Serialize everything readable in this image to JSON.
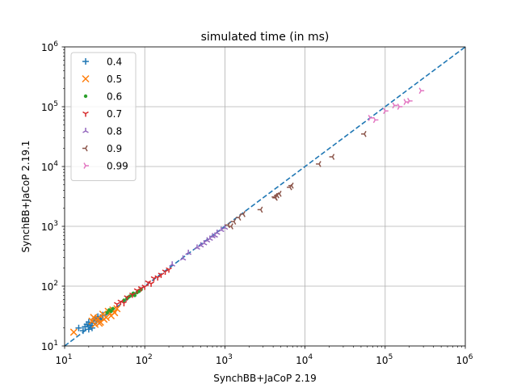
{
  "chart_data": {
    "type": "scatter",
    "title": "simulated time (in ms)",
    "xlabel": "SynchBB+JaCoP 2.19",
    "ylabel": "SynchBB+JaCoP 2.19.1",
    "xscale": "log",
    "yscale": "log",
    "xlim": [
      10,
      1000000
    ],
    "ylim": [
      10,
      1000000
    ],
    "grid": true,
    "legend": "top-left",
    "ticks": [
      {
        "base": "10",
        "exp": "1",
        "value": 10
      },
      {
        "base": "10",
        "exp": "2",
        "value": 100
      },
      {
        "base": "10",
        "exp": "3",
        "value": 1000
      },
      {
        "base": "10",
        "exp": "4",
        "value": 10000
      },
      {
        "base": "10",
        "exp": "5",
        "value": 100000
      },
      {
        "base": "10",
        "exp": "6",
        "value": 1000000
      }
    ],
    "reference_line": {
      "style": "dashed",
      "color": "#1f77b4",
      "from": [
        10,
        10
      ],
      "to": [
        1000000,
        1000000
      ]
    },
    "series": [
      {
        "name": "0.4",
        "marker": "plus",
        "color": "#1f77b4",
        "points": [
          [
            15,
            20
          ],
          [
            17,
            18
          ],
          [
            18,
            21
          ],
          [
            19,
            23
          ],
          [
            20,
            25
          ],
          [
            21,
            22
          ],
          [
            22,
            24
          ],
          [
            23,
            27
          ],
          [
            25,
            26
          ],
          [
            27,
            28
          ],
          [
            24,
            29
          ],
          [
            26,
            31
          ],
          [
            28,
            27
          ],
          [
            30,
            33
          ],
          [
            22,
            20
          ],
          [
            20,
            19
          ]
        ]
      },
      {
        "name": "0.5",
        "marker": "x",
        "color": "#ff7f0e",
        "points": [
          [
            13,
            17
          ],
          [
            22,
            26
          ],
          [
            24,
            23
          ],
          [
            26,
            29
          ],
          [
            28,
            25
          ],
          [
            30,
            34
          ],
          [
            33,
            30
          ],
          [
            35,
            38
          ],
          [
            38,
            32
          ],
          [
            40,
            40
          ],
          [
            42,
            36
          ],
          [
            45,
            42
          ],
          [
            23,
            30
          ],
          [
            27,
            24
          ],
          [
            31,
            28
          ]
        ]
      },
      {
        "name": "0.6",
        "marker": "dot",
        "color": "#2ca02c",
        "points": [
          [
            34,
            36
          ],
          [
            36,
            40
          ],
          [
            38,
            38
          ],
          [
            40,
            42
          ],
          [
            55,
            58
          ],
          [
            60,
            62
          ],
          [
            65,
            68
          ],
          [
            70,
            72
          ],
          [
            75,
            70
          ],
          [
            80,
            78
          ],
          [
            85,
            82
          ],
          [
            90,
            88
          ],
          [
            62,
            65
          ],
          [
            72,
            76
          ]
        ]
      },
      {
        "name": "0.7",
        "marker": "tri_down",
        "color": "#d62728",
        "points": [
          [
            45,
            50
          ],
          [
            50,
            55
          ],
          [
            55,
            52
          ],
          [
            60,
            65
          ],
          [
            70,
            72
          ],
          [
            80,
            85
          ],
          [
            90,
            92
          ],
          [
            100,
            98
          ],
          [
            110,
            115
          ],
          [
            120,
            110
          ],
          [
            130,
            135
          ],
          [
            145,
            140
          ],
          [
            160,
            155
          ],
          [
            180,
            175
          ],
          [
            200,
            190
          ]
        ]
      },
      {
        "name": "0.8",
        "marker": "tri_up",
        "color": "#9467bd",
        "points": [
          [
            220,
            230
          ],
          [
            300,
            290
          ],
          [
            350,
            360
          ],
          [
            450,
            440
          ],
          [
            500,
            480
          ],
          [
            600,
            580
          ],
          [
            650,
            620
          ],
          [
            700,
            680
          ],
          [
            800,
            780
          ],
          [
            900,
            870
          ],
          [
            1000,
            950
          ],
          [
            550,
            520
          ],
          [
            750,
            700
          ]
        ]
      },
      {
        "name": "0.9",
        "marker": "tri_left",
        "color": "#8c564b",
        "points": [
          [
            1100,
            1050
          ],
          [
            1300,
            1200
          ],
          [
            1500,
            1400
          ],
          [
            1700,
            1600
          ],
          [
            2800,
            1900
          ],
          [
            4200,
            3100
          ],
          [
            4500,
            3300
          ],
          [
            4800,
            3500
          ],
          [
            6500,
            4500
          ],
          [
            6800,
            4800
          ],
          [
            15000,
            11000
          ],
          [
            22000,
            14500
          ],
          [
            55000,
            35000
          ],
          [
            1200,
            1000
          ],
          [
            4300,
            3000
          ]
        ]
      },
      {
        "name": "0.99",
        "marker": "tri_right",
        "color": "#e377c2",
        "points": [
          [
            65000,
            65000
          ],
          [
            75000,
            60000
          ],
          [
            100000,
            85000
          ],
          [
            130000,
            105000
          ],
          [
            150000,
            100000
          ],
          [
            180000,
            120000
          ],
          [
            200000,
            125000
          ],
          [
            280000,
            185000
          ]
        ]
      }
    ]
  }
}
